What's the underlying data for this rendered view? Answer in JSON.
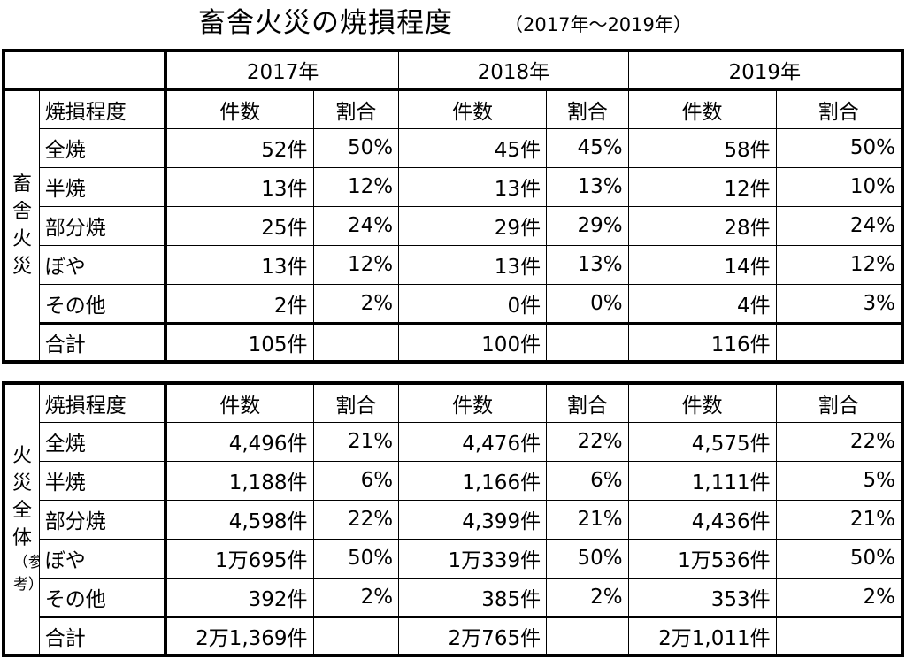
{
  "title": {
    "main": "畜舎火災の焼損程度",
    "sub": "（2017年～2019年）"
  },
  "years": [
    "2017年",
    "2018年",
    "2019年"
  ],
  "col_headers": {
    "degree": "焼損程度",
    "count": "件数",
    "ratio": "割合"
  },
  "barn": {
    "side_label": "畜舎火災",
    "rows": [
      {
        "label": "全焼",
        "c1": "52件",
        "r1": "50%",
        "c2": "45件",
        "r2": "45%",
        "c3": "58件",
        "r3": "50%"
      },
      {
        "label": "半焼",
        "c1": "13件",
        "r1": "12%",
        "c2": "13件",
        "r2": "13%",
        "c3": "12件",
        "r3": "10%"
      },
      {
        "label": "部分焼",
        "c1": "25件",
        "r1": "24%",
        "c2": "29件",
        "r2": "29%",
        "c3": "28件",
        "r3": "24%"
      },
      {
        "label": "ぼや",
        "c1": "13件",
        "r1": "12%",
        "c2": "13件",
        "r2": "13%",
        "c3": "14件",
        "r3": "12%"
      },
      {
        "label": "その他",
        "c1": "2件",
        "r1": "2%",
        "c2": "0件",
        "r2": "0%",
        "c3": "4件",
        "r3": "3%"
      }
    ],
    "total": {
      "label": "合計",
      "c1": "105件",
      "c2": "100件",
      "c3": "116件"
    }
  },
  "all": {
    "side_label_main": "火災全体",
    "side_label_note": "（参考）",
    "rows": [
      {
        "label": "全焼",
        "c1": "4,496件",
        "r1": "21%",
        "c2": "4,476件",
        "r2": "22%",
        "c3": "4,575件",
        "r3": "22%"
      },
      {
        "label": "半焼",
        "c1": "1,188件",
        "r1": "6%",
        "c2": "1,166件",
        "r2": "6%",
        "c3": "1,111件",
        "r3": "5%"
      },
      {
        "label": "部分焼",
        "c1": "4,598件",
        "r1": "22%",
        "c2": "4,399件",
        "r2": "21%",
        "c3": "4,436件",
        "r3": "21%"
      },
      {
        "label": "ぼや",
        "c1": "1万695件",
        "r1": "50%",
        "c2": "1万339件",
        "r2": "50%",
        "c3": "1万536件",
        "r3": "50%"
      },
      {
        "label": "その他",
        "c1": "392件",
        "r1": "2%",
        "c2": "385件",
        "r2": "2%",
        "c3": "353件",
        "r3": "2%"
      }
    ],
    "total": {
      "label": "合計",
      "c1": "2万1,369件",
      "c2": "2万765件",
      "c3": "2万1,011件"
    }
  }
}
